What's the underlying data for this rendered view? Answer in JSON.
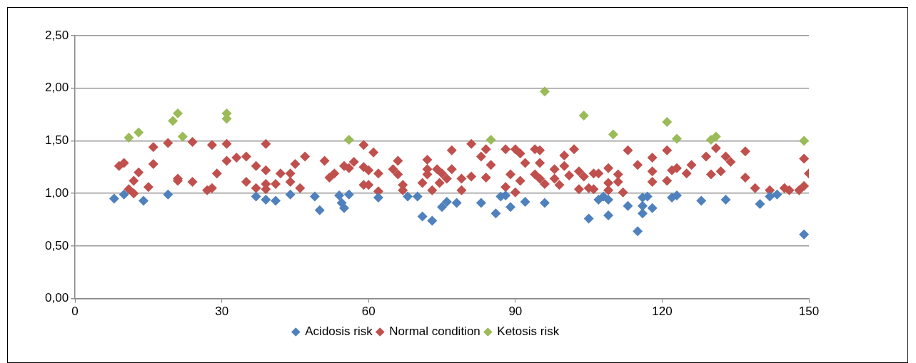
{
  "chart_data": {
    "type": "scatter",
    "marker": "diamond",
    "grid": "y",
    "legend": "bottom",
    "xlim": [
      0,
      150
    ],
    "xticks": [
      0,
      30,
      60,
      90,
      120,
      150
    ],
    "ylim": [
      0,
      2.5
    ],
    "yticks": [
      {
        "value": 0,
        "label": "0,00"
      },
      {
        "value": 0.5,
        "label": "0,50"
      },
      {
        "value": 1,
        "label": "1,00"
      },
      {
        "value": 1.5,
        "label": "1,50"
      },
      {
        "value": 2,
        "label": "2,00"
      },
      {
        "value": 2.5,
        "label": "2,50"
      }
    ],
    "series": [
      {
        "name": "Acidosis risk",
        "color": "#4f81bd",
        "x": [
          8,
          10,
          14,
          19,
          37,
          39,
          41,
          44,
          49,
          50,
          54,
          56,
          54.5,
          55,
          62,
          68,
          70,
          71,
          73,
          75,
          76,
          78,
          83,
          86,
          87,
          88,
          89,
          92,
          96,
          107,
          108,
          109,
          105,
          109,
          113,
          115,
          116,
          116,
          117,
          116,
          118,
          122,
          123,
          128,
          133,
          140,
          142,
          143.5,
          149
        ],
        "values": [
          0.95,
          0.99,
          0.93,
          0.99,
          0.97,
          0.94,
          0.93,
          0.99,
          0.97,
          0.84,
          0.98,
          0.99,
          0.91,
          0.86,
          0.96,
          0.97,
          0.97,
          0.78,
          0.74,
          0.87,
          0.92,
          0.91,
          0.91,
          0.81,
          0.97,
          0.98,
          0.87,
          0.92,
          0.91,
          0.94,
          0.97,
          0.94,
          0.76,
          0.79,
          0.88,
          0.64,
          0.81,
          0.96,
          0.97,
          0.88,
          0.86,
          0.96,
          0.98,
          0.93,
          0.94,
          0.9,
          0.97,
          0.99,
          0.61
        ]
      },
      {
        "name": "Normal condition",
        "color": "#c0504d",
        "x": [
          9,
          10,
          11,
          12,
          12,
          13,
          15,
          16,
          16,
          19,
          21,
          21,
          24,
          24,
          27,
          28,
          28,
          29,
          31,
          31,
          33,
          35,
          37,
          39,
          39,
          35,
          37,
          39,
          39,
          41,
          42,
          44,
          44,
          45,
          46,
          47,
          51,
          52,
          53,
          55,
          56,
          57,
          59,
          59,
          60,
          61,
          62,
          59,
          60,
          62,
          65,
          66,
          66,
          67,
          67,
          71,
          72,
          72,
          72,
          73,
          74,
          74.5,
          75,
          76,
          77,
          77,
          79,
          79,
          81,
          81,
          83,
          84,
          85,
          84,
          88,
          88,
          90,
          91,
          92,
          89,
          91,
          90,
          94,
          95,
          95,
          94,
          95,
          96,
          98,
          98,
          100,
          100,
          99,
          101,
          102,
          103,
          103,
          104,
          106,
          107,
          109,
          109,
          109,
          105,
          106,
          111,
          111,
          112,
          113,
          115,
          118,
          118,
          118,
          121,
          121,
          122,
          123,
          125,
          126,
          129,
          130,
          131,
          132,
          133,
          134,
          137,
          137,
          139,
          142,
          145,
          146,
          148,
          149,
          149,
          150
        ],
        "values": [
          1.26,
          1.29,
          1.04,
          1.0,
          1.12,
          1.2,
          1.06,
          1.44,
          1.28,
          1.48,
          1.12,
          1.14,
          1.49,
          1.11,
          1.03,
          1.05,
          1.46,
          1.19,
          1.47,
          1.31,
          1.34,
          1.35,
          1.26,
          1.22,
          1.47,
          1.11,
          1.05,
          1.09,
          1.04,
          1.09,
          1.19,
          1.19,
          1.11,
          1.28,
          1.05,
          1.35,
          1.31,
          1.15,
          1.19,
          1.26,
          1.24,
          1.3,
          1.46,
          1.25,
          1.22,
          1.39,
          1.19,
          1.08,
          1.08,
          1.02,
          1.23,
          1.31,
          1.18,
          1.08,
          1.03,
          1.1,
          1.32,
          1.23,
          1.18,
          1.03,
          1.23,
          1.1,
          1.19,
          1.14,
          1.23,
          1.41,
          1.14,
          1.03,
          1.16,
          1.47,
          1.35,
          1.42,
          1.27,
          1.15,
          1.42,
          1.06,
          1.42,
          1.38,
          1.29,
          1.18,
          1.12,
          1.01,
          1.42,
          1.41,
          1.29,
          1.18,
          1.14,
          1.09,
          1.23,
          1.14,
          1.36,
          1.26,
          1.08,
          1.17,
          1.42,
          1.21,
          1.04,
          1.16,
          1.19,
          1.19,
          1.24,
          1.1,
          1.03,
          1.05,
          1.04,
          1.18,
          1.11,
          1.01,
          1.41,
          1.27,
          1.34,
          1.21,
          1.11,
          1.41,
          1.12,
          1.22,
          1.24,
          1.19,
          1.27,
          1.35,
          1.18,
          1.43,
          1.21,
          1.35,
          1.3,
          1.4,
          1.15,
          1.05,
          1.03,
          1.05,
          1.03,
          1.03,
          1.07,
          1.33,
          1.19
        ]
      },
      {
        "name": "Ketosis risk",
        "color": "#9bbb59",
        "x": [
          11,
          13,
          20,
          21,
          22,
          31,
          31,
          56,
          85,
          96,
          104,
          110,
          121,
          123,
          130,
          131,
          149
        ],
        "values": [
          1.53,
          1.58,
          1.69,
          1.76,
          1.54,
          1.76,
          1.71,
          1.51,
          1.51,
          1.97,
          1.74,
          1.56,
          1.68,
          1.52,
          1.51,
          1.54,
          1.5
        ]
      }
    ]
  }
}
